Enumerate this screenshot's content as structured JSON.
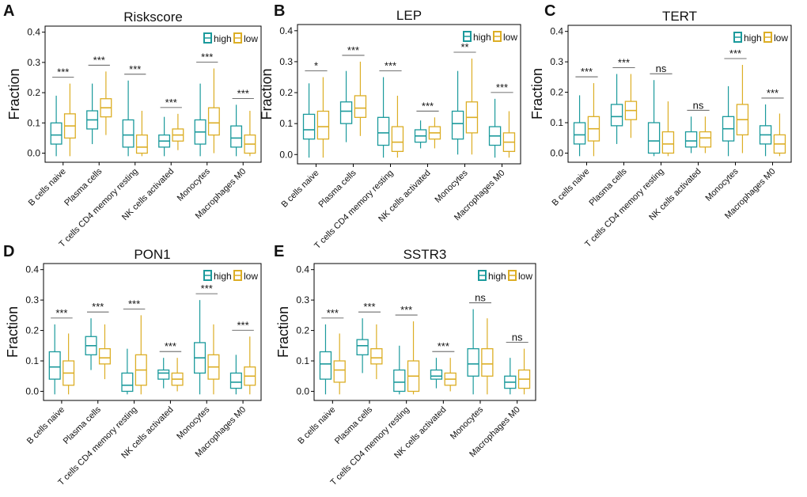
{
  "chart_data": [
    {
      "type": "box",
      "panel_label": "A",
      "title": "Riskscore",
      "ylabel": "Fraction",
      "categories": [
        "B cells naive",
        "Plasma cells",
        "T cells CD4 memory resting",
        "NK cells activated",
        "Monocytes",
        "Macrophages M0"
      ],
      "series": [
        {
          "name": "high",
          "color": "#1b9a9c",
          "boxes": [
            {
              "whislo": -0.01,
              "q1": 0.03,
              "med": 0.06,
              "q3": 0.1,
              "whishi": 0.19
            },
            {
              "whislo": 0.03,
              "q1": 0.08,
              "med": 0.11,
              "q3": 0.14,
              "whishi": 0.23
            },
            {
              "whislo": -0.01,
              "q1": 0.02,
              "med": 0.06,
              "q3": 0.11,
              "whishi": 0.24
            },
            {
              "whislo": -0.01,
              "q1": 0.02,
              "med": 0.04,
              "q3": 0.06,
              "whishi": 0.12
            },
            {
              "whislo": -0.01,
              "q1": 0.03,
              "med": 0.07,
              "q3": 0.11,
              "whishi": 0.23
            },
            {
              "whislo": -0.01,
              "q1": 0.02,
              "med": 0.05,
              "q3": 0.09,
              "whishi": 0.16
            }
          ]
        },
        {
          "name": "low",
          "color": "#dcae25",
          "boxes": [
            {
              "whislo": -0.01,
              "q1": 0.05,
              "med": 0.09,
              "q3": 0.13,
              "whishi": 0.23
            },
            {
              "whislo": 0.06,
              "q1": 0.12,
              "med": 0.15,
              "q3": 0.18,
              "whishi": 0.27
            },
            {
              "whislo": -0.01,
              "q1": 0.0,
              "med": 0.02,
              "q3": 0.06,
              "whishi": 0.14
            },
            {
              "whislo": 0.01,
              "q1": 0.04,
              "med": 0.06,
              "q3": 0.08,
              "whishi": 0.13
            },
            {
              "whislo": 0.0,
              "q1": 0.06,
              "med": 0.1,
              "q3": 0.15,
              "whishi": 0.28
            },
            {
              "whislo": -0.01,
              "q1": 0.0,
              "med": 0.03,
              "q3": 0.06,
              "whishi": 0.14
            }
          ]
        }
      ],
      "significance": [
        "***",
        "***",
        "***",
        "***",
        "***",
        "***"
      ],
      "ylim": [
        -0.03,
        0.42
      ],
      "yticks": [
        {
          "value": 0,
          "label": "0.0"
        },
        0.1,
        0.2,
        0.3,
        0.4
      ]
    },
    {
      "type": "box",
      "panel_label": "B",
      "title": "LEP",
      "ylabel": "Fraction",
      "categories": [
        "B cells naive",
        "Plasma cells",
        "T cells CD4 memory resting",
        "NK cells activated",
        "Monocytes",
        "Macrophages M0"
      ],
      "series": [
        {
          "name": "high",
          "color": "#1b9a9c",
          "boxes": [
            {
              "whislo": -0.01,
              "q1": 0.05,
              "med": 0.08,
              "q3": 0.13,
              "whishi": 0.23
            },
            {
              "whislo": 0.04,
              "q1": 0.1,
              "med": 0.14,
              "q3": 0.17,
              "whishi": 0.27
            },
            {
              "whislo": -0.01,
              "q1": 0.03,
              "med": 0.07,
              "q3": 0.12,
              "whishi": 0.25
            },
            {
              "whislo": 0.02,
              "q1": 0.04,
              "med": 0.06,
              "q3": 0.08,
              "whishi": 0.11
            },
            {
              "whislo": 0.0,
              "q1": 0.05,
              "med": 0.1,
              "q3": 0.14,
              "whishi": 0.27
            },
            {
              "whislo": -0.01,
              "q1": 0.03,
              "med": 0.06,
              "q3": 0.09,
              "whishi": 0.18
            }
          ]
        },
        {
          "name": "low",
          "color": "#dcae25",
          "boxes": [
            {
              "whislo": -0.01,
              "q1": 0.05,
              "med": 0.09,
              "q3": 0.14,
              "whishi": 0.25
            },
            {
              "whislo": 0.06,
              "q1": 0.12,
              "med": 0.15,
              "q3": 0.19,
              "whishi": 0.3
            },
            {
              "whislo": -0.01,
              "q1": 0.01,
              "med": 0.04,
              "q3": 0.09,
              "whishi": 0.19
            },
            {
              "whislo": 0.02,
              "q1": 0.05,
              "med": 0.07,
              "q3": 0.09,
              "whishi": 0.12
            },
            {
              "whislo": 0.0,
              "q1": 0.07,
              "med": 0.12,
              "q3": 0.17,
              "whishi": 0.31
            },
            {
              "whislo": -0.01,
              "q1": 0.01,
              "med": 0.04,
              "q3": 0.07,
              "whishi": 0.14
            }
          ]
        }
      ],
      "significance": [
        "*",
        "***",
        "***",
        "***",
        "**",
        "***"
      ],
      "ylim": [
        -0.03,
        0.42
      ],
      "yticks": [
        {
          "value": 0,
          "label": "0.0"
        },
        0.1,
        0.2,
        0.3,
        0.4
      ]
    },
    {
      "type": "box",
      "panel_label": "C",
      "title": "TERT",
      "ylabel": "Fraction",
      "categories": [
        "B cells naive",
        "Plasma cells",
        "T cells CD4 memory resting",
        "NK cells activated",
        "Monocytes",
        "Macrophages M0"
      ],
      "series": [
        {
          "name": "high",
          "color": "#1b9a9c",
          "boxes": [
            {
              "whislo": -0.01,
              "q1": 0.03,
              "med": 0.06,
              "q3": 0.1,
              "whishi": 0.19
            },
            {
              "whislo": 0.03,
              "q1": 0.09,
              "med": 0.12,
              "q3": 0.16,
              "whishi": 0.26
            },
            {
              "whislo": -0.01,
              "q1": 0.0,
              "med": 0.04,
              "q3": 0.1,
              "whishi": 0.24
            },
            {
              "whislo": 0.0,
              "q1": 0.02,
              "med": 0.04,
              "q3": 0.07,
              "whishi": 0.12
            },
            {
              "whislo": -0.01,
              "q1": 0.04,
              "med": 0.08,
              "q3": 0.12,
              "whishi": 0.22
            },
            {
              "whislo": -0.01,
              "q1": 0.03,
              "med": 0.06,
              "q3": 0.09,
              "whishi": 0.16
            }
          ]
        },
        {
          "name": "low",
          "color": "#dcae25",
          "boxes": [
            {
              "whislo": -0.01,
              "q1": 0.04,
              "med": 0.08,
              "q3": 0.12,
              "whishi": 0.23
            },
            {
              "whislo": 0.05,
              "q1": 0.11,
              "med": 0.14,
              "q3": 0.17,
              "whishi": 0.26
            },
            {
              "whislo": -0.01,
              "q1": 0.0,
              "med": 0.03,
              "q3": 0.07,
              "whishi": 0.17
            },
            {
              "whislo": 0.0,
              "q1": 0.02,
              "med": 0.05,
              "q3": 0.07,
              "whishi": 0.12
            },
            {
              "whislo": 0.0,
              "q1": 0.06,
              "med": 0.11,
              "q3": 0.16,
              "whishi": 0.29
            },
            {
              "whislo": -0.01,
              "q1": 0.0,
              "med": 0.03,
              "q3": 0.06,
              "whishi": 0.13
            }
          ]
        }
      ],
      "significance": [
        "***",
        "***",
        "ns",
        "ns",
        "***",
        "***"
      ],
      "ylim": [
        -0.03,
        0.42
      ],
      "yticks": [
        {
          "value": 0,
          "label": "0.0"
        },
        0.1,
        0.2,
        0.3,
        0.4
      ]
    },
    {
      "type": "box",
      "panel_label": "D",
      "title": "PON1",
      "ylabel": "Fraction",
      "categories": [
        "B cells naive",
        "Plasma cells",
        "T cells CD4 memory resting",
        "NK cells activated",
        "Monocytes",
        "Macrophages M0"
      ],
      "series": [
        {
          "name": "high",
          "color": "#1b9a9c",
          "boxes": [
            {
              "whislo": -0.01,
              "q1": 0.04,
              "med": 0.08,
              "q3": 0.13,
              "whishi": 0.22
            },
            {
              "whislo": 0.07,
              "q1": 0.12,
              "med": 0.15,
              "q3": 0.18,
              "whishi": 0.24
            },
            {
              "whislo": -0.01,
              "q1": 0.0,
              "med": 0.02,
              "q3": 0.06,
              "whishi": 0.14
            },
            {
              "whislo": 0.01,
              "q1": 0.04,
              "med": 0.06,
              "q3": 0.07,
              "whishi": 0.11
            },
            {
              "whislo": -0.01,
              "q1": 0.06,
              "med": 0.11,
              "q3": 0.16,
              "whishi": 0.3
            },
            {
              "whislo": -0.01,
              "q1": 0.01,
              "med": 0.03,
              "q3": 0.06,
              "whishi": 0.12
            }
          ]
        },
        {
          "name": "low",
          "color": "#dcae25",
          "boxes": [
            {
              "whislo": -0.01,
              "q1": 0.02,
              "med": 0.06,
              "q3": 0.1,
              "whishi": 0.19
            },
            {
              "whislo": 0.04,
              "q1": 0.09,
              "med": 0.11,
              "q3": 0.14,
              "whishi": 0.22
            },
            {
              "whislo": -0.01,
              "q1": 0.02,
              "med": 0.07,
              "q3": 0.12,
              "whishi": 0.25
            },
            {
              "whislo": 0.0,
              "q1": 0.02,
              "med": 0.04,
              "q3": 0.06,
              "whishi": 0.11
            },
            {
              "whislo": -0.01,
              "q1": 0.04,
              "med": 0.08,
              "q3": 0.12,
              "whishi": 0.22
            },
            {
              "whislo": -0.01,
              "q1": 0.02,
              "med": 0.05,
              "q3": 0.08,
              "whishi": 0.18
            }
          ]
        }
      ],
      "significance": [
        "***",
        "***",
        "***",
        "***",
        "***",
        "***"
      ],
      "ylim": [
        -0.03,
        0.42
      ],
      "yticks": [
        {
          "value": 0,
          "label": "0.0"
        },
        0.1,
        0.2,
        0.3,
        0.4
      ]
    },
    {
      "type": "box",
      "panel_label": "E",
      "title": "SSTR3",
      "ylabel": "Fraction",
      "categories": [
        "B cells naive",
        "Plasma cells",
        "T cells CD4 memory resting",
        "NK cells activated",
        "Monocytes",
        "Macrophages M0"
      ],
      "series": [
        {
          "name": "high",
          "color": "#1b9a9c",
          "boxes": [
            {
              "whislo": -0.01,
              "q1": 0.04,
              "med": 0.09,
              "q3": 0.13,
              "whishi": 0.22
            },
            {
              "whislo": 0.06,
              "q1": 0.12,
              "med": 0.15,
              "q3": 0.17,
              "whishi": 0.24
            },
            {
              "whislo": -0.01,
              "q1": 0.0,
              "med": 0.03,
              "q3": 0.07,
              "whishi": 0.15
            },
            {
              "whislo": 0.01,
              "q1": 0.04,
              "med": 0.05,
              "q3": 0.07,
              "whishi": 0.11
            },
            {
              "whislo": -0.01,
              "q1": 0.05,
              "med": 0.09,
              "q3": 0.14,
              "whishi": 0.27
            },
            {
              "whislo": -0.01,
              "q1": 0.01,
              "med": 0.03,
              "q3": 0.05,
              "whishi": 0.11
            }
          ]
        },
        {
          "name": "low",
          "color": "#dcae25",
          "boxes": [
            {
              "whislo": -0.01,
              "q1": 0.03,
              "med": 0.07,
              "q3": 0.1,
              "whishi": 0.19
            },
            {
              "whislo": 0.04,
              "q1": 0.09,
              "med": 0.11,
              "q3": 0.14,
              "whishi": 0.22
            },
            {
              "whislo": -0.01,
              "q1": 0.0,
              "med": 0.05,
              "q3": 0.1,
              "whishi": 0.23
            },
            {
              "whislo": 0.0,
              "q1": 0.02,
              "med": 0.04,
              "q3": 0.06,
              "whishi": 0.11
            },
            {
              "whislo": -0.01,
              "q1": 0.05,
              "med": 0.09,
              "q3": 0.14,
              "whishi": 0.24
            },
            {
              "whislo": -0.01,
              "q1": 0.01,
              "med": 0.04,
              "q3": 0.07,
              "whishi": 0.14
            }
          ]
        }
      ],
      "significance": [
        "***",
        "***",
        "***",
        "***",
        "ns",
        "ns"
      ],
      "ylim": [
        -0.03,
        0.42
      ],
      "yticks": [
        {
          "value": 0,
          "label": "0.0"
        },
        0.1,
        0.2,
        0.3,
        0.4
      ]
    }
  ]
}
